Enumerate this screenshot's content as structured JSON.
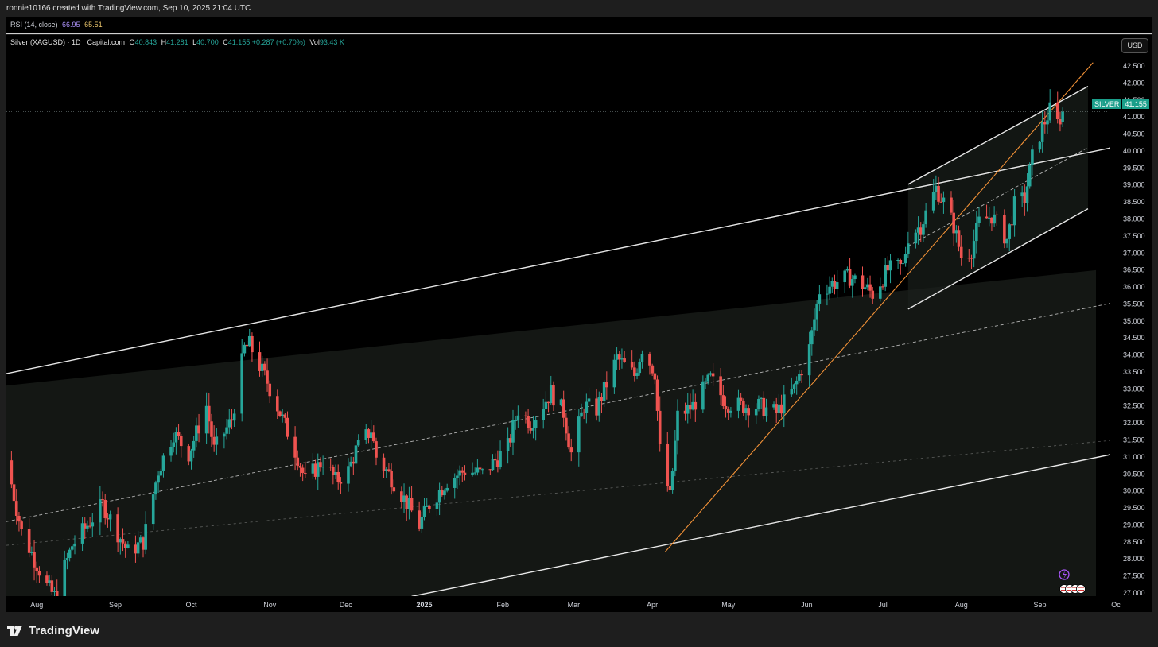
{
  "header": {
    "caption": "ronnie10166 created with TradingView.com, Sep 10, 2025 21:04 UTC"
  },
  "rsi": {
    "label": "RSI (14, close)",
    "value1": "66.95",
    "value2": "65.51",
    "value1_color": "#a98ff5",
    "value2_color": "#e9c46a"
  },
  "legend": {
    "symbol": "Silver (XAGUSD) · 1D · Capital.com",
    "open_label": "O",
    "open": "40.843",
    "high_label": "H",
    "high": "41.281",
    "low_label": "L",
    "low": "40.700",
    "close_label": "C",
    "close": "41.155",
    "change": "+0.287 (+0.70%)",
    "vol_label": "Vol",
    "volume": "93.43 K"
  },
  "currency_button": "USD",
  "price_tag": {
    "symbol": "SILVER",
    "price": "41.155"
  },
  "footer": {
    "brand": "TradingView"
  },
  "colors": {
    "up": "#26a69a",
    "down": "#ef5350",
    "trendline": "#e8e8e8",
    "orange_trendline": "#f39237",
    "channel_fill": "#161a16",
    "accent": "#1a9e8a"
  },
  "event_icons": [
    "lightning-icon",
    "us-flag-icon"
  ],
  "chart_data": {
    "type": "candlestick",
    "title": "",
    "y_tick_labels": [
      "42.500",
      "42.000",
      "41.500",
      "41.000",
      "40.500",
      "40.000",
      "39.500",
      "39.000",
      "38.500",
      "38.000",
      "37.500",
      "37.000",
      "36.500",
      "36.000",
      "35.500",
      "35.000",
      "34.500",
      "34.000",
      "33.500",
      "33.000",
      "32.500",
      "32.000",
      "31.500",
      "31.000",
      "30.500",
      "30.000",
      "29.500",
      "29.000",
      "28.500",
      "28.000",
      "27.500",
      "27.000"
    ],
    "x_tick_labels": [
      {
        "label": "Aug",
        "date": "2024-08-01"
      },
      {
        "label": "Sep",
        "date": "2024-09-01"
      },
      {
        "label": "Oct",
        "date": "2024-10-01"
      },
      {
        "label": "Nov",
        "date": "2024-11-01"
      },
      {
        "label": "Dec",
        "date": "2024-12-01"
      },
      {
        "label": "2025",
        "date": "2025-01-01",
        "bold": true
      },
      {
        "label": "Feb",
        "date": "2025-02-01"
      },
      {
        "label": "Mar",
        "date": "2025-03-01"
      },
      {
        "label": "Apr",
        "date": "2025-04-01"
      },
      {
        "label": "May",
        "date": "2025-05-01"
      },
      {
        "label": "Jun",
        "date": "2025-06-01"
      },
      {
        "label": "Jul",
        "date": "2025-07-01"
      },
      {
        "label": "Aug",
        "date": "2025-08-01"
      },
      {
        "label": "Sep",
        "date": "2025-09-01"
      },
      {
        "label": "Oc",
        "date": "2025-10-01"
      }
    ],
    "x_range": [
      "2024-07-20",
      "2025-10-01"
    ],
    "ylim": [
      26.8,
      42.85
    ],
    "last_price": 41.155,
    "grid": false,
    "anchors": [
      [
        "2024-07-20",
        30.9
      ],
      [
        "2024-07-26",
        28.8
      ],
      [
        "2024-08-05",
        27.2
      ],
      [
        "2024-08-08",
        26.9
      ],
      [
        "2024-08-15",
        28.4
      ],
      [
        "2024-08-27",
        29.6
      ],
      [
        "2024-09-06",
        28.2
      ],
      [
        "2024-09-12",
        28.5
      ],
      [
        "2024-09-18",
        30.6
      ],
      [
        "2024-09-24",
        31.7
      ],
      [
        "2024-09-30",
        31.1
      ],
      [
        "2024-10-07",
        32.5
      ],
      [
        "2024-10-10",
        31.2
      ],
      [
        "2024-10-17",
        32.1
      ],
      [
        "2024-10-22",
        34.2
      ],
      [
        "2024-10-24",
        34.3
      ],
      [
        "2024-10-31",
        33.2
      ],
      [
        "2024-11-05",
        32.3
      ],
      [
        "2024-11-12",
        31.0
      ],
      [
        "2024-11-15",
        30.3
      ],
      [
        "2024-11-22",
        30.9
      ],
      [
        "2024-11-27",
        30.3
      ],
      [
        "2024-12-02",
        30.6
      ],
      [
        "2024-12-05",
        31.2
      ],
      [
        "2024-12-11",
        31.8
      ],
      [
        "2024-12-13",
        31.0
      ],
      [
        "2024-12-18",
        30.5
      ],
      [
        "2024-12-23",
        29.9
      ],
      [
        "2024-12-30",
        29.0
      ],
      [
        "2025-01-03",
        29.6
      ],
      [
        "2025-01-10",
        30.3
      ],
      [
        "2025-01-17",
        30.6
      ],
      [
        "2025-01-24",
        30.5
      ],
      [
        "2025-02-03",
        31.3
      ],
      [
        "2025-02-07",
        32.4
      ],
      [
        "2025-02-12",
        32.0
      ],
      [
        "2025-02-20",
        32.9
      ],
      [
        "2025-02-25",
        32.3
      ],
      [
        "2025-02-28",
        31.1
      ],
      [
        "2025-03-05",
        32.5
      ],
      [
        "2025-03-10",
        32.4
      ],
      [
        "2025-03-18",
        33.9
      ],
      [
        "2025-03-25",
        33.4
      ],
      [
        "2025-03-28",
        34.2
      ],
      [
        "2025-04-02",
        33.5
      ],
      [
        "2025-04-04",
        31.2
      ],
      [
        "2025-04-08",
        29.8
      ],
      [
        "2025-04-11",
        32.2
      ],
      [
        "2025-04-17",
        32.5
      ],
      [
        "2025-04-24",
        33.3
      ],
      [
        "2025-04-30",
        32.6
      ],
      [
        "2025-05-06",
        32.5
      ],
      [
        "2025-05-13",
        32.5
      ],
      [
        "2025-05-20",
        32.3
      ],
      [
        "2025-05-27",
        33.0
      ],
      [
        "2025-06-02",
        34.2
      ],
      [
        "2025-06-06",
        35.9
      ],
      [
        "2025-06-11",
        36.1
      ],
      [
        "2025-06-18",
        36.3
      ],
      [
        "2025-06-24",
        36.0
      ],
      [
        "2025-06-27",
        35.8
      ],
      [
        "2025-07-03",
        36.5
      ],
      [
        "2025-07-09",
        36.6
      ],
      [
        "2025-07-11",
        37.5
      ],
      [
        "2025-07-16",
        37.8
      ],
      [
        "2025-07-22",
        38.9
      ],
      [
        "2025-07-25",
        38.5
      ],
      [
        "2025-07-29",
        37.8
      ],
      [
        "2025-08-01",
        36.9
      ],
      [
        "2025-08-05",
        37.1
      ],
      [
        "2025-08-08",
        37.9
      ],
      [
        "2025-08-13",
        38.1
      ],
      [
        "2025-08-19",
        37.4
      ],
      [
        "2025-08-22",
        38.4
      ],
      [
        "2025-08-26",
        38.6
      ],
      [
        "2025-08-29",
        39.8
      ],
      [
        "2025-09-02",
        40.7
      ],
      [
        "2025-09-05",
        41.2
      ],
      [
        "2025-09-08",
        40.8
      ],
      [
        "2025-09-10",
        41.155
      ]
    ],
    "last_candle": {
      "date": "2025-09-10",
      "open": 40.843,
      "high": 41.281,
      "low": 40.7,
      "close": 41.155
    },
    "trendlines": [
      {
        "name": "main-channel-upper",
        "from": [
          "2024-07-20",
          33.45
        ],
        "to": [
          "2025-10-01",
          40.12
        ],
        "style": "solid"
      },
      {
        "name": "main-channel-middle",
        "from": [
          "2024-07-20",
          29.1
        ],
        "to": [
          "2025-10-01",
          35.55
        ],
        "style": "dashed"
      },
      {
        "name": "main-channel-lower",
        "from": [
          "2024-12-27",
          26.9
        ],
        "to": [
          "2025-10-01",
          31.1
        ],
        "style": "solid"
      },
      {
        "name": "lower-channel-middle",
        "from": [
          "2024-07-20",
          28.4
        ],
        "to": [
          "2025-10-01",
          31.5
        ],
        "style": "dashed-faint"
      },
      {
        "name": "small-channel-upper",
        "from": [
          "2025-07-11",
          39.02
        ],
        "to": [
          "2025-09-20",
          41.9
        ],
        "style": "solid"
      },
      {
        "name": "small-channel-lower",
        "from": [
          "2025-07-11",
          35.35
        ],
        "to": [
          "2025-09-20",
          38.3
        ],
        "style": "solid"
      },
      {
        "name": "small-channel-middle",
        "from": [
          "2025-07-11",
          37.2
        ],
        "to": [
          "2025-09-20",
          40.1
        ],
        "style": "dashed"
      },
      {
        "name": "orange-trendline",
        "from": [
          "2025-04-06",
          28.2
        ],
        "to": [
          "2025-09-22",
          42.6
        ],
        "style": "orange"
      }
    ]
  }
}
